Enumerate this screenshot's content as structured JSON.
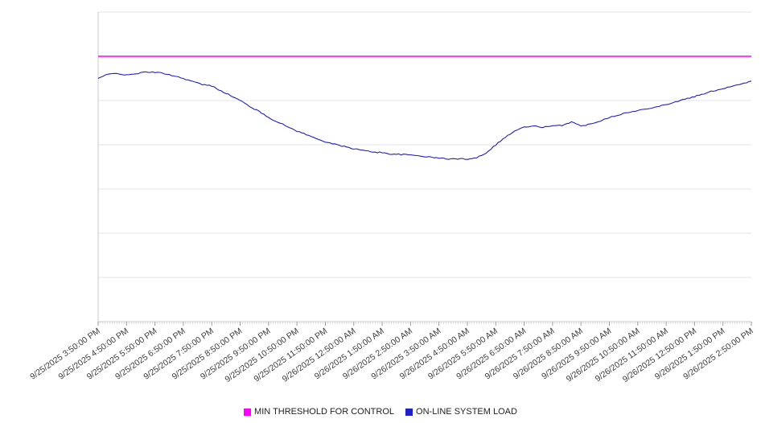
{
  "page": {
    "background": "#ffffff"
  },
  "chart_data": {
    "type": "line",
    "title": "",
    "xlabel": "",
    "ylabel": "",
    "grid": true,
    "legend_position": "bottom",
    "ylim": [
      0,
      700
    ],
    "y_gridline_step": 100,
    "y_axis_labels_visible": false,
    "minutes_between_points": 20,
    "minor_tick_minutes": 5,
    "x_tick_labels": [
      "9/25/2025 3:50:00 PM",
      "9/25/2025 4:50:00 PM",
      "9/25/2025 5:50:00 PM",
      "9/25/2025 6:50:00 PM",
      "9/25/2025 7:50:00 PM",
      "9/25/2025 8:50:00 PM",
      "9/25/2025 9:50:00 PM",
      "9/25/2025 10:50:00 PM",
      "9/25/2025 11:50:00 PM",
      "9/26/2025 12:50:00 AM",
      "9/26/2025 1:50:00 AM",
      "9/26/2025 2:50:00 AM",
      "9/26/2025 3:50:00 AM",
      "9/26/2025 4:50:00 AM",
      "9/26/2025 5:50:00 AM",
      "9/26/2025 6:50:00 AM",
      "9/26/2025 7:50:00 AM",
      "9/26/2025 8:50:00 AM",
      "9/26/2025 9:50:00 AM",
      "9/26/2025 10:50:00 AM",
      "9/26/2025 11:50:00 AM",
      "9/26/2025 12:50:00 PM",
      "9/26/2025 1:50:00 PM",
      "9/26/2025 2:50:00 PM"
    ],
    "series": [
      {
        "name": "MIN THRESHOLD FOR CONTROL",
        "kind": "threshold",
        "color": "#ff00ff",
        "value": 600
      },
      {
        "name": "ON-LINE SYSTEM LOAD",
        "kind": "line",
        "color": "#2020c8",
        "values": [
          550,
          559,
          562,
          557,
          561,
          564,
          564,
          561,
          556,
          550,
          543,
          536,
          533,
          522,
          511,
          500,
          487,
          475,
          462,
          451,
          441,
          431,
          423,
          414,
          407,
          401,
          396,
          391,
          387,
          384,
          382,
          379,
          378,
          377,
          375,
          372,
          370,
          368,
          368,
          368,
          371,
          382,
          400,
          417,
          431,
          440,
          442,
          440,
          442,
          444,
          452,
          442,
          447,
          454,
          462,
          468,
          473,
          477,
          482,
          486,
          491,
          497,
          503,
          509,
          515,
          522,
          527,
          533,
          538,
          544
        ]
      }
    ]
  }
}
